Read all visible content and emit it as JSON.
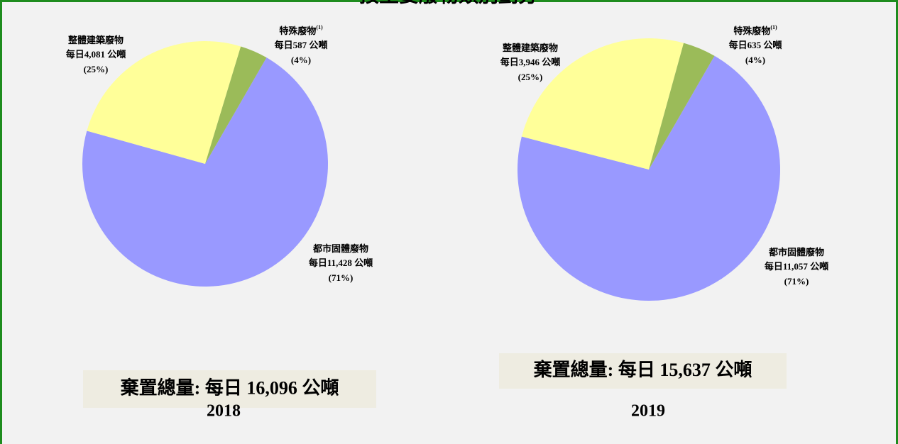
{
  "title": "按主要廢物類別劃分",
  "chart_data": [
    {
      "type": "pie",
      "categories": [
        "都市固體廢物",
        "整體建築廢物",
        "特殊廢物"
      ],
      "category_notes": [
        null,
        null,
        "(1)"
      ],
      "values": [
        11428,
        4081,
        587
      ],
      "value_labels": [
        "每日11,428 公噸",
        "每日4,081 公噸",
        "每日587 公噸"
      ],
      "percentages": [
        71,
        25,
        4
      ],
      "percentage_labels": [
        "(71%)",
        "(25%)",
        "(4%)"
      ],
      "colors": [
        "#9999ff",
        "#ffff99",
        "#9bbb59"
      ],
      "total_label": "棄置總量: 每日 16,096 公噸",
      "year": "2018"
    },
    {
      "type": "pie",
      "categories": [
        "都市固體廢物",
        "整體建築廢物",
        "特殊廢物"
      ],
      "category_notes": [
        null,
        null,
        "(1)"
      ],
      "values": [
        11057,
        3946,
        635
      ],
      "value_labels": [
        "每日11,057 公噸",
        "每日3,946 公噸",
        "每日635 公噸"
      ],
      "percentages": [
        71,
        25,
        4
      ],
      "percentage_labels": [
        "(71%)",
        "(25%)",
        "(4%)"
      ],
      "colors": [
        "#9999ff",
        "#ffff99",
        "#9bbb59"
      ],
      "total_label": "棄置總量: 每日 15,637 公噸",
      "year": "2019"
    }
  ]
}
